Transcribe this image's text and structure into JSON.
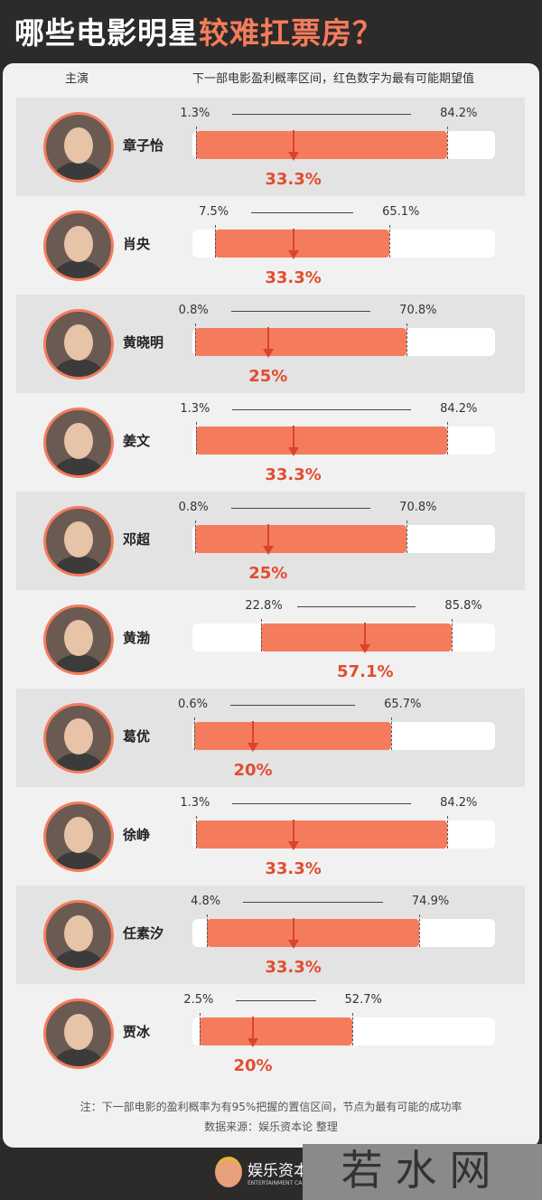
{
  "title": {
    "part1": "哪些电影明星",
    "part2": "较难扛票房？"
  },
  "header": {
    "col_actor": "主演",
    "col_range": "下一部电影盈利概率区间，红色数字为最有可能期望值"
  },
  "colors": {
    "accent": "#f47c5c",
    "expected": "#e24d2e",
    "background": "#2d2a2a"
  },
  "chart_data": {
    "type": "range-bar",
    "unit": "%",
    "xlim": [
      0,
      100
    ],
    "rows": [
      {
        "name": "章子怡",
        "low": 1.3,
        "high": 84.2,
        "expected": 33.3,
        "low_label": "1.3%",
        "high_label": "84.2%",
        "expected_label": "33.3%"
      },
      {
        "name": "肖央",
        "low": 7.5,
        "high": 65.1,
        "expected": 33.3,
        "low_label": "7.5%",
        "high_label": "65.1%",
        "expected_label": "33.3%"
      },
      {
        "name": "黄晓明",
        "low": 0.8,
        "high": 70.8,
        "expected": 25,
        "low_label": "0.8%",
        "high_label": "70.8%",
        "expected_label": "25%"
      },
      {
        "name": "姜文",
        "low": 1.3,
        "high": 84.2,
        "expected": 33.3,
        "low_label": "1.3%",
        "high_label": "84.2%",
        "expected_label": "33.3%"
      },
      {
        "name": "邓超",
        "low": 0.8,
        "high": 70.8,
        "expected": 25,
        "low_label": "0.8%",
        "high_label": "70.8%",
        "expected_label": "25%"
      },
      {
        "name": "黄渤",
        "low": 22.8,
        "high": 85.8,
        "expected": 57.1,
        "low_label": "22.8%",
        "high_label": "85.8%",
        "expected_label": "57.1%"
      },
      {
        "name": "葛优",
        "low": 0.6,
        "high": 65.7,
        "expected": 20,
        "low_label": "0.6%",
        "high_label": "65.7%",
        "expected_label": "20%"
      },
      {
        "name": "徐峥",
        "low": 1.3,
        "high": 84.2,
        "expected": 33.3,
        "low_label": "1.3%",
        "high_label": "84.2%",
        "expected_label": "33.3%"
      },
      {
        "name": "任素汐",
        "low": 4.8,
        "high": 74.9,
        "expected": 33.3,
        "low_label": "4.8%",
        "high_label": "74.9%",
        "expected_label": "33.3%"
      },
      {
        "name": "贾冰",
        "low": 2.5,
        "high": 52.7,
        "expected": 20,
        "low_label": "2.5%",
        "high_label": "52.7%",
        "expected_label": "20%"
      }
    ]
  },
  "footer": {
    "note": "注：下一部电影的盈利概率为有95%把握的置信区间，节点为最有可能的成功率",
    "source": "数据来源：娱乐资本论 整理",
    "logo_text": "娱乐资本论",
    "logo_sub": "ENTERTAINMENT CAPITAL",
    "watermark": "若水网"
  }
}
